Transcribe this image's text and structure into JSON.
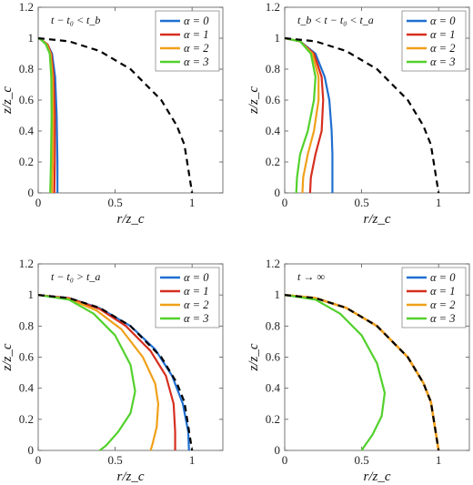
{
  "chart_data": [
    {
      "type": "line",
      "annotation": "t − t₀ < t_b",
      "xlabel": "r/z_c",
      "ylabel": "z/z_c",
      "xlim": [
        0,
        1.2
      ],
      "ylim": [
        0,
        1.2
      ],
      "xticks": [
        "0",
        "0.5",
        "1"
      ],
      "yticks": [
        "0",
        "0.2",
        "0.4",
        "0.6",
        "0.8",
        "1",
        "1.2"
      ],
      "legend_position": "top-right",
      "reference": {
        "style": "dashed",
        "color": "#000000",
        "x": [
          0,
          0.2,
          0.4,
          0.6,
          0.8,
          0.9,
          0.95,
          1.0
        ],
        "y": [
          1.0,
          0.98,
          0.917,
          0.8,
          0.6,
          0.436,
          0.312,
          0.0
        ]
      },
      "series": [
        {
          "name": "α = 0",
          "color": "#1f6fd1",
          "x": [
            0.0,
            0.02,
            0.06,
            0.09,
            0.11,
            0.12,
            0.125,
            0.125
          ],
          "y": [
            1.0,
            0.99,
            0.96,
            0.9,
            0.75,
            0.5,
            0.2,
            0.0
          ]
        },
        {
          "name": "α = 1",
          "color": "#d62e1f",
          "x": [
            0.0,
            0.02,
            0.06,
            0.085,
            0.1,
            0.108,
            0.108,
            0.105
          ],
          "y": [
            1.0,
            0.99,
            0.96,
            0.9,
            0.75,
            0.5,
            0.2,
            0.0
          ]
        },
        {
          "name": "α = 2",
          "color": "#f0a019",
          "x": [
            0.0,
            0.02,
            0.055,
            0.08,
            0.093,
            0.097,
            0.095,
            0.09
          ],
          "y": [
            1.0,
            0.99,
            0.96,
            0.9,
            0.75,
            0.5,
            0.2,
            0.0
          ]
        },
        {
          "name": "α = 3",
          "color": "#52d12c",
          "x": [
            0.0,
            0.02,
            0.05,
            0.075,
            0.085,
            0.087,
            0.083,
            0.078
          ],
          "y": [
            1.0,
            0.99,
            0.96,
            0.9,
            0.75,
            0.5,
            0.2,
            0.0
          ]
        }
      ]
    },
    {
      "type": "line",
      "annotation": "t_b < t − t₀ < t_a",
      "xlabel": "r/z_c",
      "ylabel": "z/z_c",
      "xlim": [
        0,
        1.2
      ],
      "ylim": [
        0,
        1.2
      ],
      "xticks": [
        "0",
        "0.5",
        "1"
      ],
      "yticks": [
        "0",
        "0.2",
        "0.4",
        "0.6",
        "0.8",
        "1",
        "1.2"
      ],
      "legend_position": "top-right",
      "reference": {
        "style": "dashed",
        "color": "#000000",
        "x": [
          0,
          0.2,
          0.4,
          0.6,
          0.8,
          0.9,
          0.95,
          1.0
        ],
        "y": [
          1.0,
          0.98,
          0.917,
          0.8,
          0.6,
          0.436,
          0.312,
          0.0
        ]
      },
      "series": [
        {
          "name": "α = 0",
          "color": "#1f6fd1",
          "x": [
            0.0,
            0.1,
            0.2,
            0.26,
            0.29,
            0.305,
            0.31,
            0.31,
            0.31
          ],
          "y": [
            1.0,
            0.98,
            0.9,
            0.75,
            0.6,
            0.4,
            0.25,
            0.1,
            0.0
          ]
        },
        {
          "name": "α = 1",
          "color": "#d62e1f",
          "x": [
            0.0,
            0.1,
            0.19,
            0.24,
            0.25,
            0.24,
            0.2,
            0.17,
            0.165
          ],
          "y": [
            1.0,
            0.98,
            0.9,
            0.75,
            0.6,
            0.4,
            0.25,
            0.1,
            0.0
          ]
        },
        {
          "name": "α = 2",
          "color": "#f0a019",
          "x": [
            0.0,
            0.1,
            0.18,
            0.22,
            0.22,
            0.19,
            0.15,
            0.12,
            0.115
          ],
          "y": [
            1.0,
            0.98,
            0.9,
            0.75,
            0.6,
            0.4,
            0.25,
            0.1,
            0.0
          ]
        },
        {
          "name": "α = 3",
          "color": "#52d12c",
          "x": [
            0.0,
            0.1,
            0.17,
            0.2,
            0.19,
            0.15,
            0.1,
            0.08,
            0.075
          ],
          "y": [
            1.0,
            0.98,
            0.9,
            0.75,
            0.6,
            0.4,
            0.25,
            0.1,
            0.0
          ]
        }
      ]
    },
    {
      "type": "line",
      "annotation": "t − t₀ > t_a",
      "xlabel": "r/z_c",
      "ylabel": "z/z_c",
      "xlim": [
        0,
        1.2
      ],
      "ylim": [
        0,
        1.2
      ],
      "xticks": [
        "0",
        "0.5",
        "1"
      ],
      "yticks": [
        "0",
        "0.2",
        "0.4",
        "0.6",
        "0.8",
        "1",
        "1.2"
      ],
      "legend_position": "top-right",
      "reference": {
        "style": "dashed",
        "color": "#000000",
        "x": [
          0,
          0.2,
          0.4,
          0.6,
          0.8,
          0.9,
          0.95,
          1.0
        ],
        "y": [
          1.0,
          0.98,
          0.917,
          0.8,
          0.6,
          0.436,
          0.312,
          0.0
        ]
      },
      "series": [
        {
          "name": "α = 0",
          "color": "#1f6fd1",
          "x": [
            0.0,
            0.2,
            0.4,
            0.6,
            0.76,
            0.87,
            0.94,
            0.975,
            0.98
          ],
          "y": [
            1.0,
            0.98,
            0.915,
            0.8,
            0.65,
            0.48,
            0.3,
            0.12,
            0.0
          ]
        },
        {
          "name": "α = 1",
          "color": "#d62e1f",
          "x": [
            0.0,
            0.2,
            0.4,
            0.57,
            0.73,
            0.83,
            0.88,
            0.89,
            0.89
          ],
          "y": [
            1.0,
            0.98,
            0.91,
            0.8,
            0.64,
            0.48,
            0.3,
            0.12,
            0.0
          ]
        },
        {
          "name": "α = 2",
          "color": "#f0a019",
          "x": [
            0.0,
            0.2,
            0.38,
            0.54,
            0.68,
            0.76,
            0.78,
            0.77,
            0.74,
            0.73
          ],
          "y": [
            1.0,
            0.975,
            0.9,
            0.78,
            0.6,
            0.43,
            0.3,
            0.15,
            0.03,
            0.0
          ]
        },
        {
          "name": "α = 3",
          "color": "#52d12c",
          "x": [
            0.0,
            0.2,
            0.36,
            0.5,
            0.6,
            0.63,
            0.6,
            0.52,
            0.44,
            0.4
          ],
          "y": [
            1.0,
            0.97,
            0.88,
            0.74,
            0.55,
            0.38,
            0.24,
            0.12,
            0.03,
            0.0
          ]
        }
      ]
    },
    {
      "type": "line",
      "annotation": "t → ∞",
      "xlabel": "r/z_c",
      "ylabel": "z/z_c",
      "xlim": [
        0,
        1.2
      ],
      "ylim": [
        0,
        1.2
      ],
      "xticks": [
        "0",
        "0.5",
        "1"
      ],
      "yticks": [
        "0",
        "0.2",
        "0.4",
        "0.6",
        "0.8",
        "1",
        "1.2"
      ],
      "legend_position": "top-right",
      "reference": {
        "style": "dashed",
        "color": "#000000",
        "x": [
          0,
          0.2,
          0.4,
          0.6,
          0.8,
          0.9,
          0.95,
          1.0
        ],
        "y": [
          1.0,
          0.98,
          0.917,
          0.8,
          0.6,
          0.436,
          0.312,
          0.0
        ]
      },
      "series": [
        {
          "name": "α = 0",
          "color": "#1f6fd1",
          "x": [
            0,
            0.2,
            0.4,
            0.6,
            0.8,
            0.9,
            0.95,
            1.0
          ],
          "y": [
            1.0,
            0.98,
            0.917,
            0.8,
            0.6,
            0.436,
            0.312,
            0.0
          ]
        },
        {
          "name": "α = 1",
          "color": "#d62e1f",
          "x": [
            0,
            0.2,
            0.4,
            0.6,
            0.8,
            0.9,
            0.95,
            1.0
          ],
          "y": [
            1.0,
            0.98,
            0.917,
            0.8,
            0.6,
            0.436,
            0.312,
            0.0
          ]
        },
        {
          "name": "α = 2",
          "color": "#f0a019",
          "x": [
            0,
            0.2,
            0.4,
            0.6,
            0.8,
            0.9,
            0.95,
            1.0
          ],
          "y": [
            1.0,
            0.98,
            0.917,
            0.8,
            0.6,
            0.436,
            0.312,
            0.0
          ]
        },
        {
          "name": "α = 3",
          "color": "#52d12c",
          "x": [
            0.0,
            0.2,
            0.36,
            0.5,
            0.6,
            0.65,
            0.63,
            0.57,
            0.52,
            0.5
          ],
          "y": [
            1.0,
            0.97,
            0.88,
            0.74,
            0.56,
            0.37,
            0.22,
            0.1,
            0.03,
            0.0
          ]
        }
      ]
    }
  ]
}
